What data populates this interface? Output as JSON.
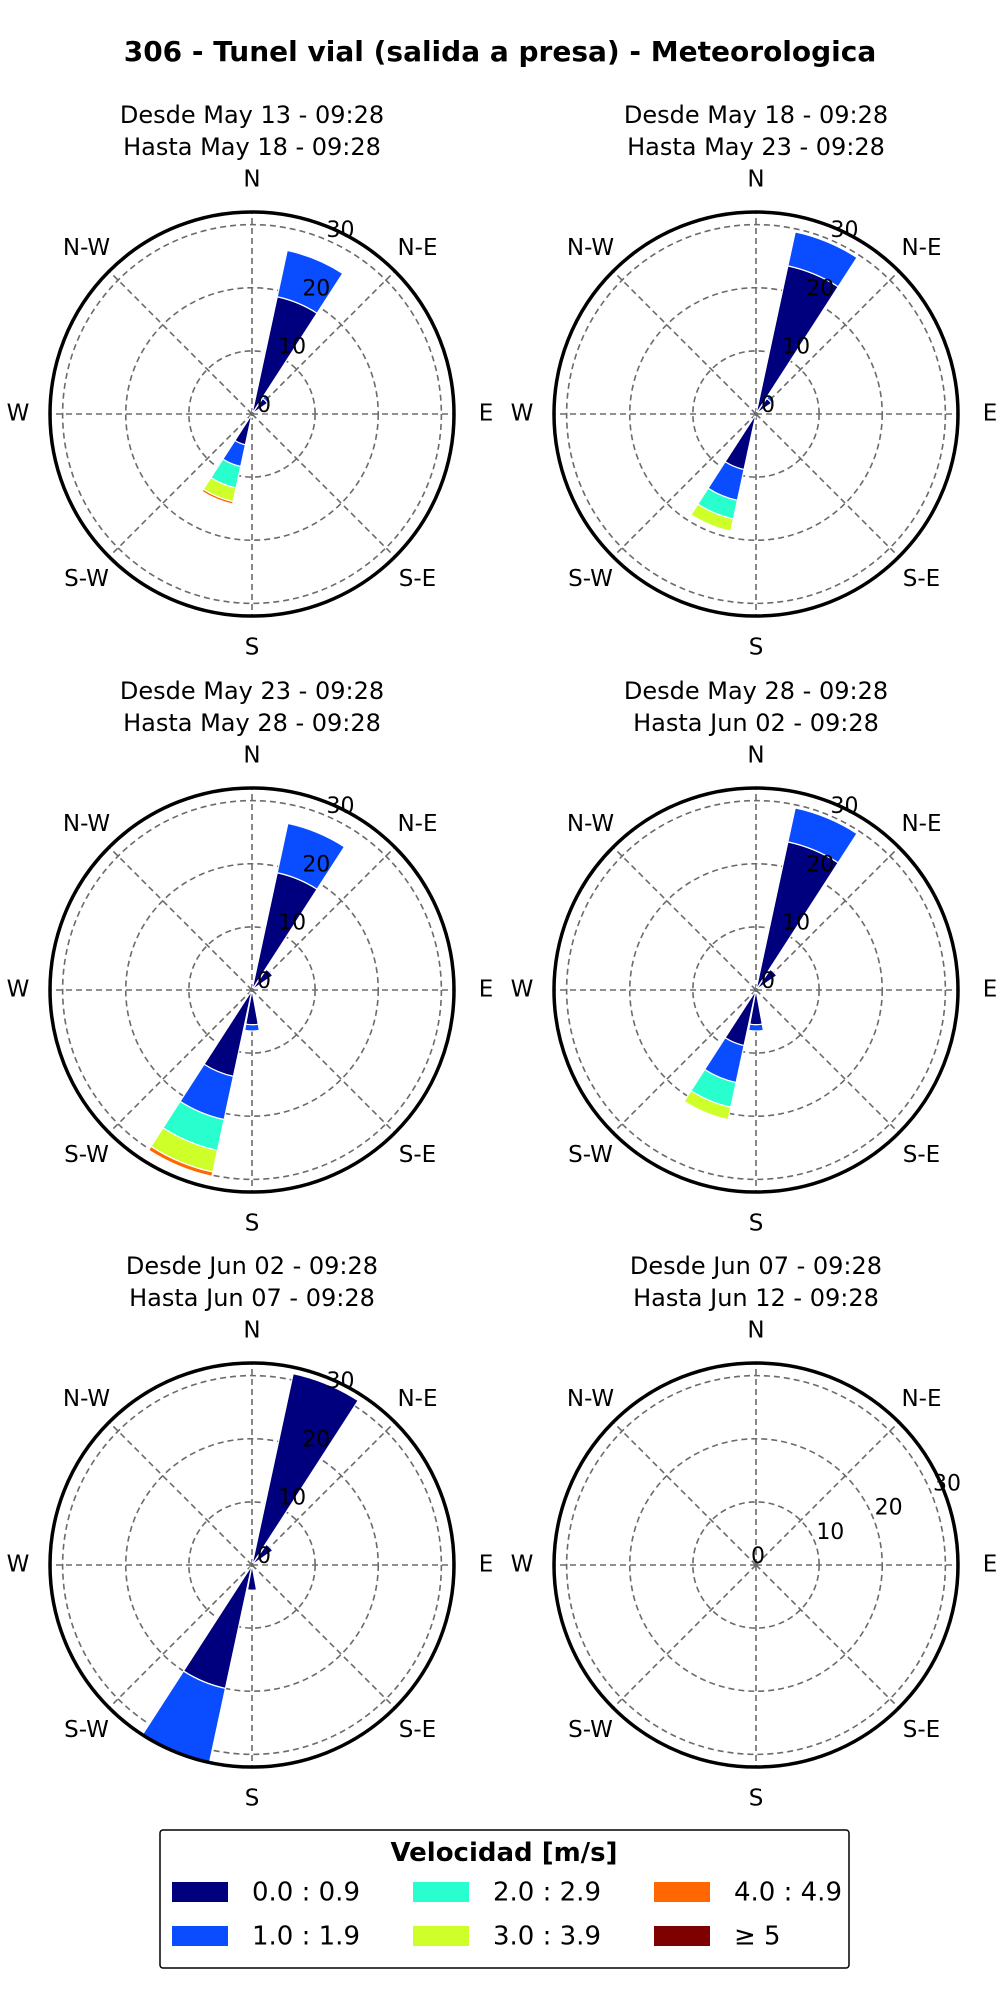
{
  "title": "306 - Tunel vial (salida a presa) - Meteorologica",
  "directions": [
    "N",
    "N-E",
    "E",
    "S-E",
    "S",
    "S-W",
    "W",
    "N-W"
  ],
  "legend": {
    "title": "Velocidad [m/s]",
    "items": [
      {
        "label": "0.0 : 0.9",
        "color": "#00007f"
      },
      {
        "label": "2.0 : 2.9",
        "color": "#29ffce"
      },
      {
        "label": "4.0 : 4.9",
        "color": "#ff6800"
      },
      {
        "label": "1.0 : 1.9",
        "color": "#0a4cff"
      },
      {
        "label": "3.0 : 3.9",
        "color": "#ceff29"
      },
      {
        "label": "≥ 5",
        "color": "#7f0000"
      }
    ]
  },
  "chart_data": [
    {
      "type": "windrose",
      "title_line1": "Desde May 13 - 09:28",
      "title_line2": "Hasta May 18 - 09:28",
      "r_ticks": [
        0,
        10,
        20,
        30
      ],
      "r_max": 32,
      "sectors": [
        {
          "direction_deg": 22.5,
          "segments": [
            19,
            7.5
          ]
        },
        {
          "direction_deg": 45,
          "segments": [
            3,
            0.5
          ]
        },
        {
          "direction_deg": 180,
          "segments": [
            0.5
          ]
        },
        {
          "direction_deg": 202.5,
          "segments": [
            5,
            3.5,
            3.5,
            2.2,
            0.4
          ]
        }
      ]
    },
    {
      "type": "windrose",
      "title_line1": "Desde May 18 - 09:28",
      "title_line2": "Hasta May 23 - 09:28",
      "r_ticks": [
        0,
        10,
        20,
        30
      ],
      "r_max": 32,
      "sectors": [
        {
          "direction_deg": 22.5,
          "segments": [
            24,
            5.5
          ]
        },
        {
          "direction_deg": 45,
          "segments": [
            3,
            0.5
          ]
        },
        {
          "direction_deg": 202.5,
          "segments": [
            9,
            5,
            3,
            2
          ]
        }
      ]
    },
    {
      "type": "windrose",
      "title_line1": "Desde May 23 - 09:28",
      "title_line2": "Hasta May 28 - 09:28",
      "r_ticks": [
        0,
        10,
        20,
        30
      ],
      "r_max": 32,
      "sectors": [
        {
          "direction_deg": 22.5,
          "segments": [
            19,
            8
          ]
        },
        {
          "direction_deg": 45,
          "segments": [
            4
          ]
        },
        {
          "direction_deg": 180,
          "segments": [
            5.5,
            1
          ]
        },
        {
          "direction_deg": 202.5,
          "segments": [
            14,
            7,
            5,
            3.5,
            0.7
          ]
        }
      ]
    },
    {
      "type": "windrose",
      "title_line1": "Desde May 28 - 09:28",
      "title_line2": "Hasta Jun 02 - 09:28",
      "r_ticks": [
        0,
        10,
        20,
        30
      ],
      "r_max": 32,
      "sectors": [
        {
          "direction_deg": 22.5,
          "segments": [
            24,
            5.5
          ]
        },
        {
          "direction_deg": 45,
          "segments": [
            4
          ]
        },
        {
          "direction_deg": 180,
          "segments": [
            5.5,
            1
          ]
        },
        {
          "direction_deg": 202.5,
          "segments": [
            9,
            6,
            4,
            2
          ]
        }
      ]
    },
    {
      "type": "windrose",
      "title_line1": "Desde Jun 02 - 09:28",
      "title_line2": "Hasta Jun 07 - 09:28",
      "r_ticks": [
        0,
        10,
        20,
        30
      ],
      "r_max": 32,
      "sectors": [
        {
          "direction_deg": 22.5,
          "segments": [
            31
          ]
        },
        {
          "direction_deg": 45,
          "segments": [
            4
          ]
        },
        {
          "direction_deg": 180,
          "segments": [
            4
          ]
        },
        {
          "direction_deg": 202.5,
          "segments": [
            20,
            12
          ]
        }
      ]
    },
    {
      "type": "windrose",
      "title_line1": "Desde Jun 07 - 09:28",
      "title_line2": "Hasta Jun 12 - 09:28",
      "r_ticks": [
        0,
        10,
        20,
        30
      ],
      "r_max": 32,
      "sectors": []
    }
  ]
}
